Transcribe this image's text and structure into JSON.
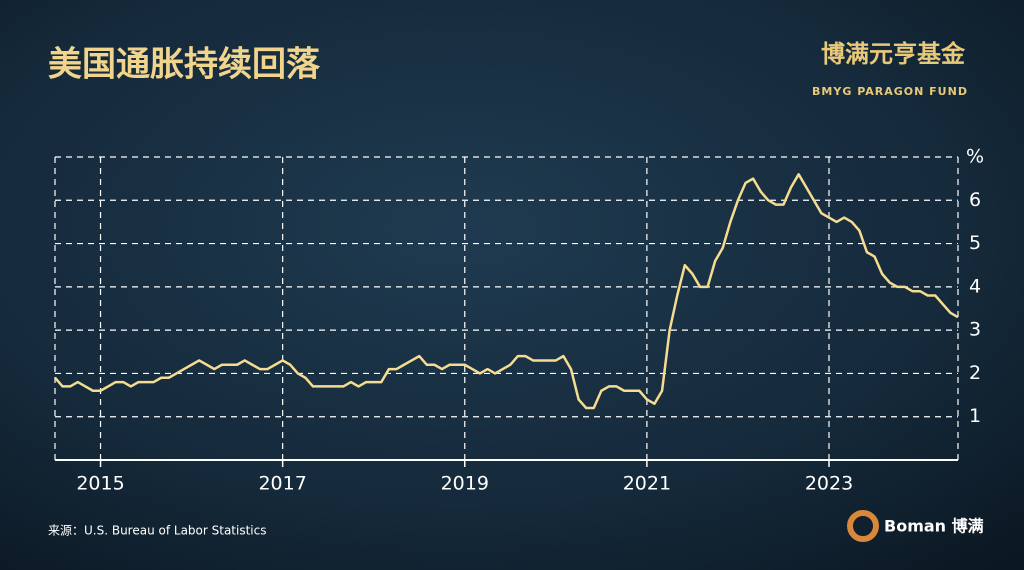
{
  "chart_data": {
    "type": "line",
    "title": "美国通胀持续回落",
    "y_label": "%",
    "categories": [
      null,
      null,
      null,
      null,
      null,
      null,
      "2015",
      null,
      null,
      null,
      null,
      null,
      null,
      null,
      null,
      null,
      null,
      null,
      null,
      null,
      null,
      null,
      null,
      null,
      null,
      null,
      null,
      null,
      null,
      null,
      "2017",
      null,
      null,
      null,
      null,
      null,
      null,
      null,
      null,
      null,
      null,
      null,
      null,
      null,
      null,
      null,
      null,
      null,
      null,
      null,
      null,
      null,
      null,
      null,
      "2019",
      null,
      null,
      null,
      null,
      null,
      null,
      null,
      null,
      null,
      null,
      null,
      null,
      null,
      null,
      null,
      null,
      null,
      null,
      null,
      null,
      null,
      null,
      null,
      "2021",
      null,
      null,
      null,
      null,
      null,
      null,
      null,
      null,
      null,
      null,
      null,
      null,
      null,
      null,
      null,
      null,
      null,
      null,
      null,
      null,
      null,
      null,
      null,
      "2023",
      null,
      null,
      null,
      null,
      null,
      null,
      null,
      null,
      null,
      null,
      null,
      null,
      null,
      null,
      null,
      null,
      null
    ],
    "values": [
      1.9,
      1.7,
      1.7,
      1.8,
      1.7,
      1.6,
      1.6,
      1.7,
      1.8,
      1.8,
      1.7,
      1.8,
      1.8,
      1.8,
      1.9,
      1.9,
      2.0,
      2.1,
      2.2,
      2.3,
      2.2,
      2.1,
      2.2,
      2.2,
      2.2,
      2.3,
      2.2,
      2.1,
      2.1,
      2.2,
      2.3,
      2.2,
      2.0,
      1.9,
      1.7,
      1.7,
      1.7,
      1.7,
      1.7,
      1.8,
      1.7,
      1.8,
      1.8,
      1.8,
      2.1,
      2.1,
      2.2,
      2.3,
      2.4,
      2.2,
      2.2,
      2.1,
      2.2,
      2.2,
      2.2,
      2.1,
      2.0,
      2.1,
      2.0,
      2.1,
      2.2,
      2.4,
      2.4,
      2.3,
      2.3,
      2.3,
      2.3,
      2.4,
      2.1,
      1.4,
      1.2,
      1.2,
      1.6,
      1.7,
      1.7,
      1.6,
      1.6,
      1.6,
      1.4,
      1.3,
      1.6,
      3.0,
      3.8,
      4.5,
      4.3,
      4.0,
      4.0,
      4.6,
      4.9,
      5.5,
      6.0,
      6.4,
      6.5,
      6.2,
      6.0,
      5.9,
      5.9,
      6.3,
      6.6,
      6.3,
      6.0,
      5.7,
      5.6,
      5.5,
      5.6,
      5.5,
      5.3,
      4.8,
      4.7,
      4.3,
      4.1,
      4.0,
      4.0,
      3.9,
      3.9,
      3.8,
      3.8,
      3.6,
      3.4,
      3.3
    ],
    "color": "#f5dc90",
    "ylim": [
      0,
      7
    ],
    "yticks": [
      1,
      2,
      3,
      4,
      5,
      6
    ],
    "grid": true,
    "source": "来源：U.S. Bureau of Labor Statistics"
  },
  "branding": {
    "name": "博满元亨基金",
    "english": "BMYG PARAGON FUND",
    "footer": "Boman 博满"
  }
}
